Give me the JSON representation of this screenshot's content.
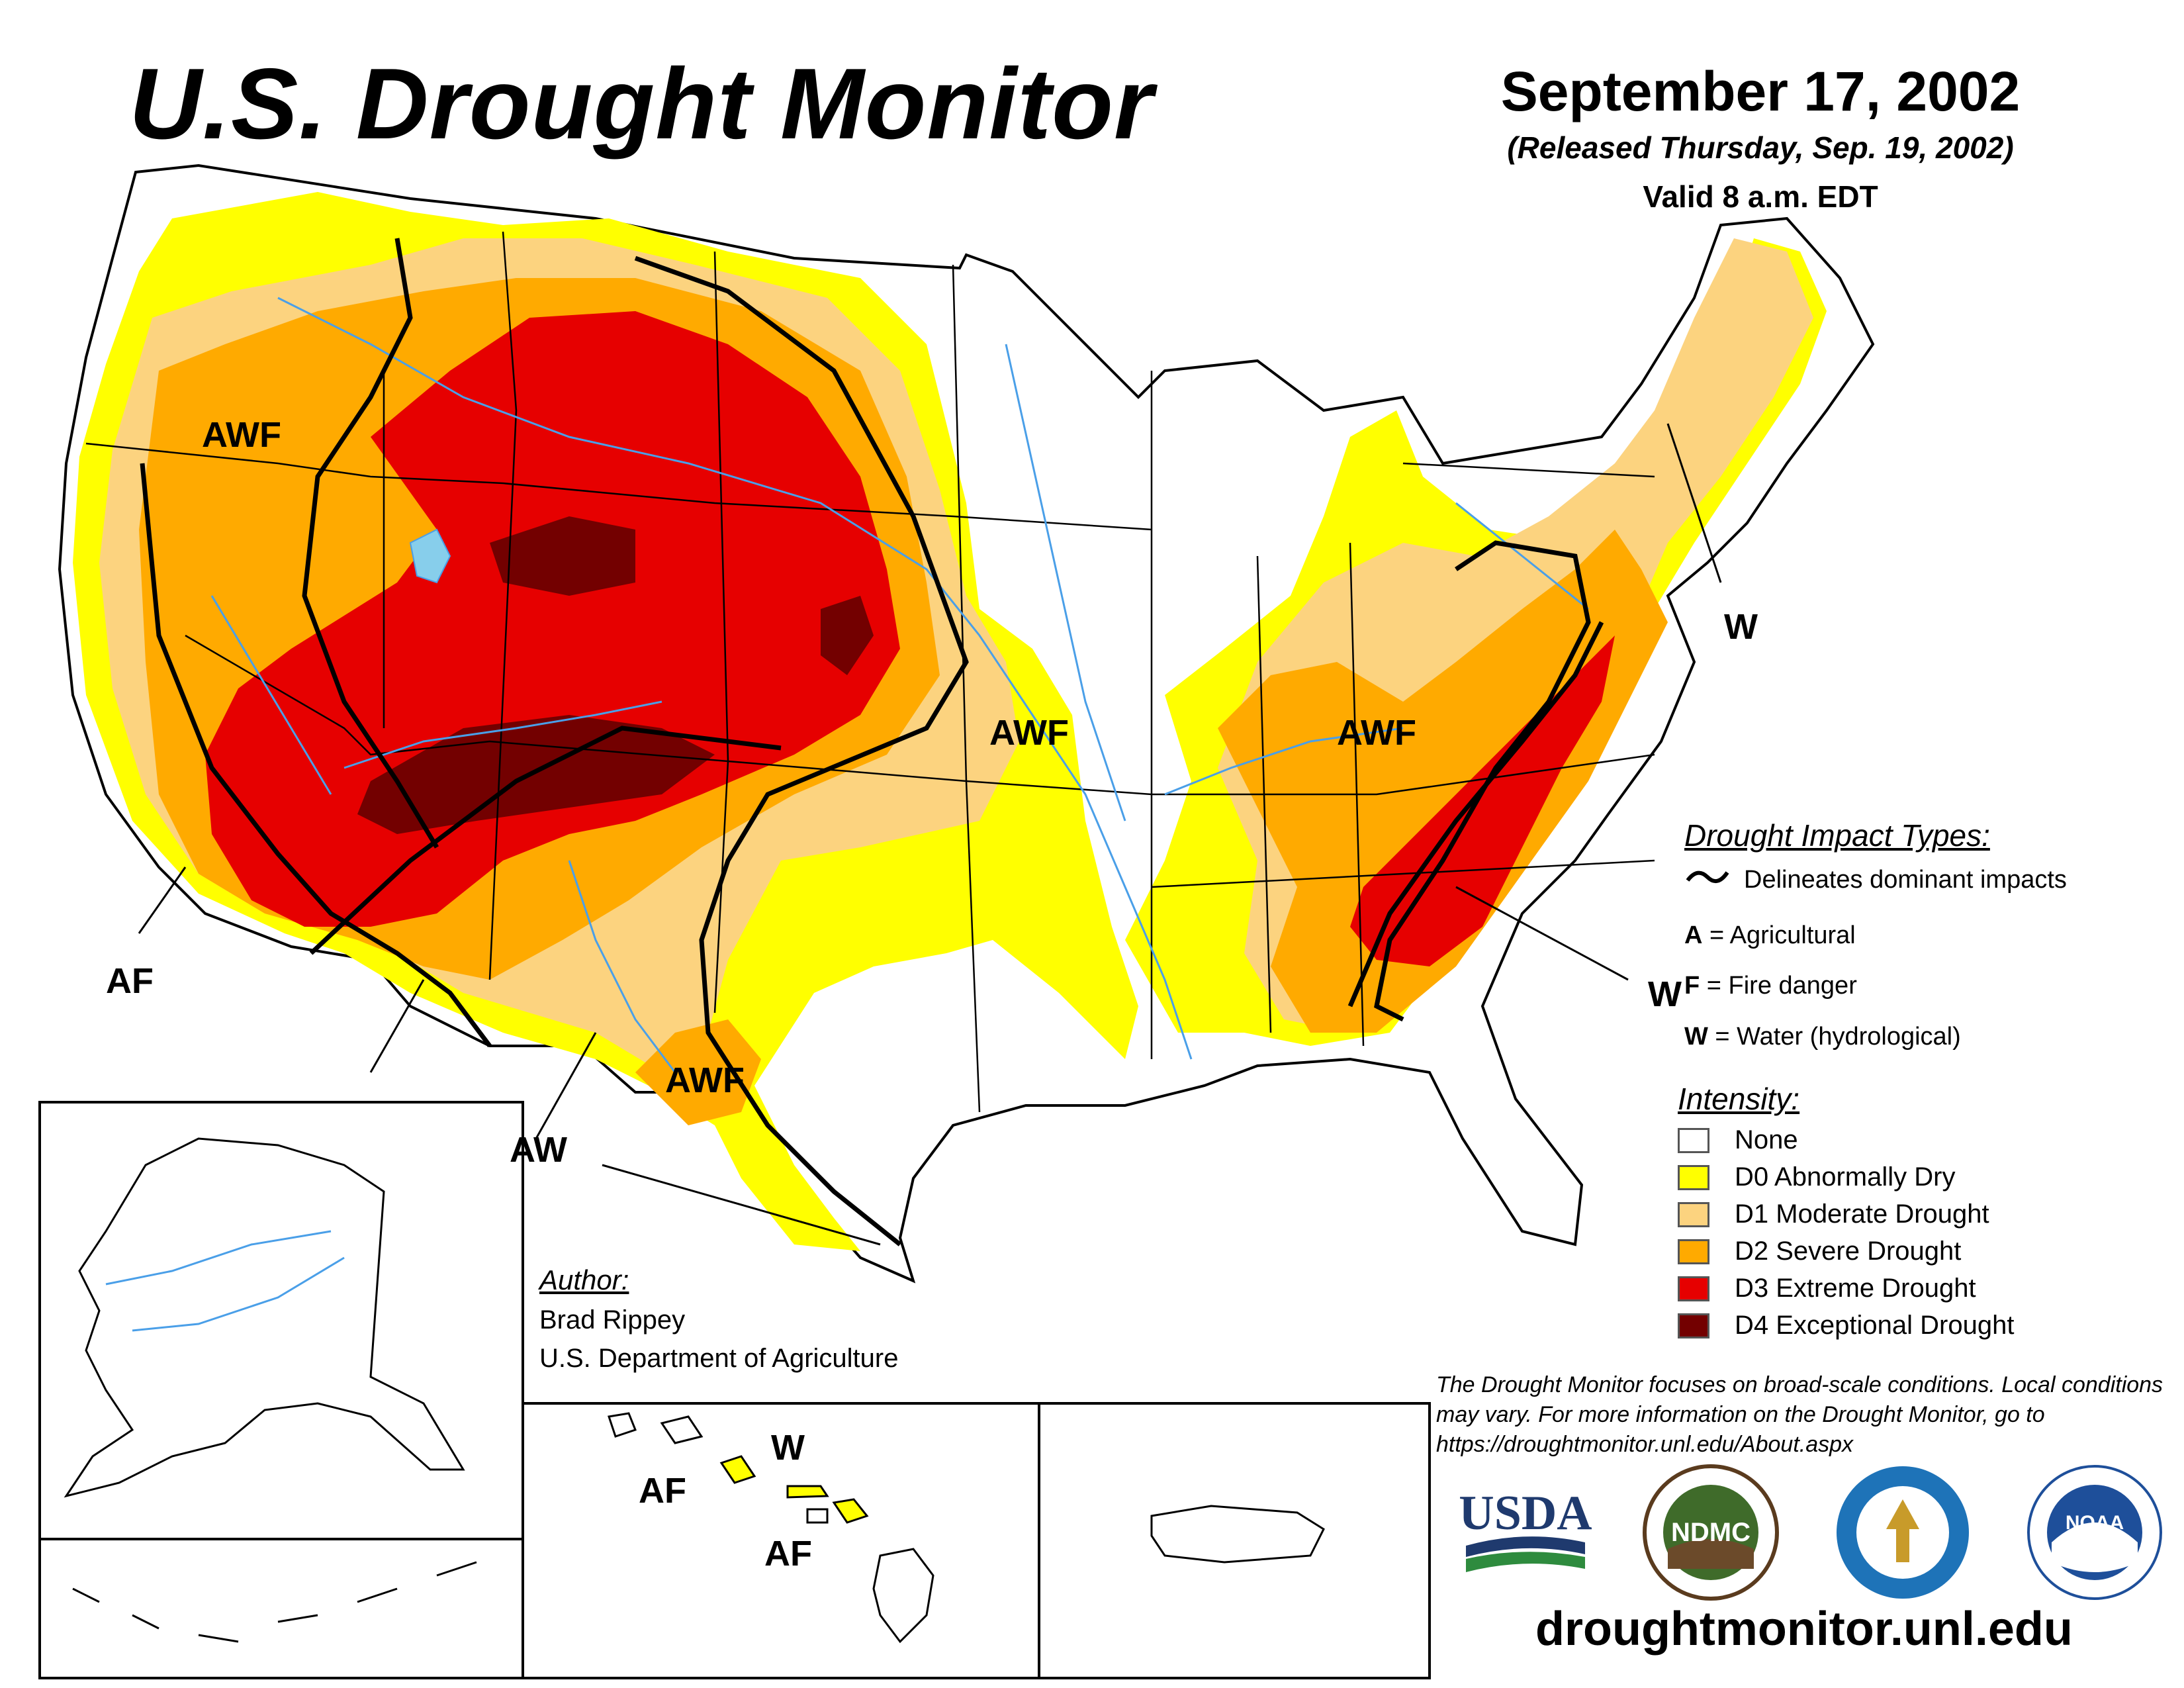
{
  "header": {
    "title": "U.S. Drought Monitor",
    "date": "September 17, 2002",
    "released": "(Released Thursday, Sep. 19, 2002)",
    "valid": "Valid 8 a.m. EDT"
  },
  "impact_types": {
    "heading": "Drought Impact Types:",
    "delineates": "Delineates dominant impacts",
    "items": [
      {
        "code": "A",
        "text": " = Agricultural"
      },
      {
        "code": "F",
        "text": " = Fire danger"
      },
      {
        "code": "W",
        "text": " = Water (hydrological)"
      }
    ]
  },
  "intensity": {
    "heading": "Intensity:",
    "levels": [
      {
        "label": "None",
        "color": "#ffffff"
      },
      {
        "label": "D0 Abnormally Dry",
        "color": "#ffff00"
      },
      {
        "label": "D1 Moderate Drought",
        "color": "#fcd37f"
      },
      {
        "label": "D2 Severe Drought",
        "color": "#ffaa00"
      },
      {
        "label": "D3 Extreme Drought",
        "color": "#e60000"
      },
      {
        "label": "D4 Exceptional Drought",
        "color": "#730000"
      }
    ]
  },
  "map_labels": [
    "AWF",
    "AF",
    "AWF",
    "AWF",
    "AWF",
    "AW",
    "W",
    "W",
    "AF",
    "W",
    "AF"
  ],
  "author": {
    "heading": "Author:",
    "name": "Brad Rippey",
    "org": "U.S. Department of Agriculture"
  },
  "note": "The Drought Monitor focuses on broad-scale conditions. Local conditions may vary. For more information on the Drought Monitor, go to https://droughtmonitor.unl.edu/About.aspx",
  "logos": {
    "usda": "USDA",
    "ndmc": "NDMC",
    "noaa": "NOAA"
  },
  "website": "droughtmonitor.unl.edu",
  "colors": {
    "water": "#4a9fe8",
    "outline": "#000000"
  }
}
